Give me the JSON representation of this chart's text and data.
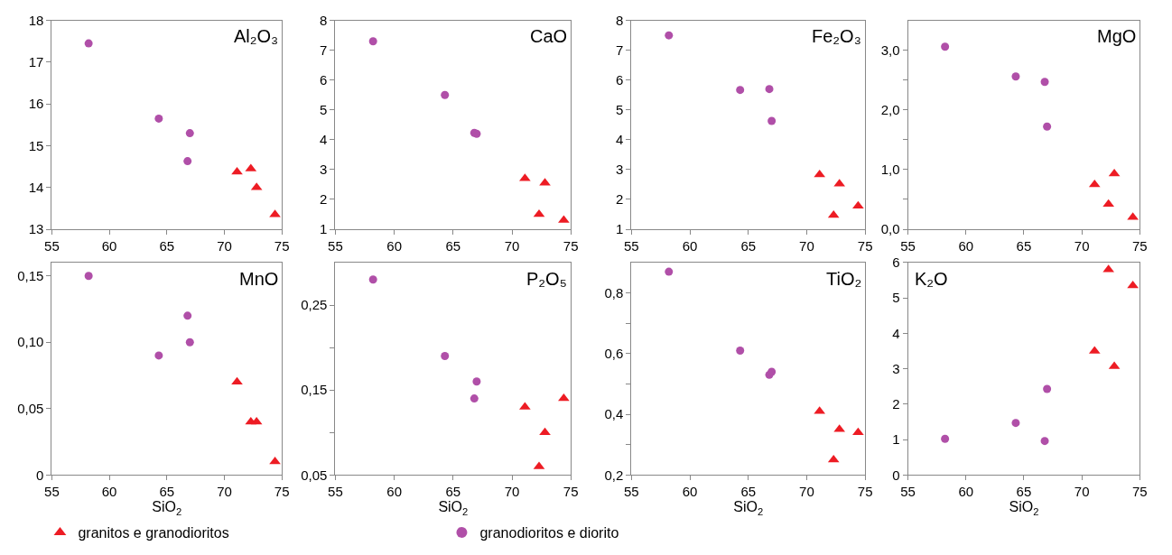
{
  "chart_data": [
    {
      "type": "scatter",
      "annotations": [
        "Al₂O₃"
      ],
      "xlim": [
        55,
        75
      ],
      "xticks": [
        55,
        60,
        65,
        70,
        75
      ],
      "ylim": [
        13,
        18
      ],
      "yticks": [
        13,
        14,
        15,
        16,
        17,
        18
      ],
      "legend": "bottom",
      "series": [
        {
          "name": "granitos e granodioritos",
          "color": "#ed1c24",
          "marker": "triangle",
          "x": [
            71.1,
            72.3,
            72.8,
            74.4
          ],
          "values": [
            14.37,
            14.45,
            14.0,
            13.35
          ]
        },
        {
          "name": "granodioritos e diorito",
          "color": "#b04fa8",
          "marker": "circle",
          "x": [
            58.2,
            64.3,
            67.0,
            66.8
          ],
          "values": [
            17.45,
            15.65,
            15.3,
            14.63
          ]
        }
      ]
    },
    {
      "type": "scatter",
      "annotations": [
        "CaO"
      ],
      "xlim": [
        55,
        75
      ],
      "xticks": [
        55,
        60,
        65,
        70,
        75
      ],
      "ylim": [
        1,
        8
      ],
      "yticks": [
        1,
        2,
        3,
        4,
        5,
        6,
        7,
        8
      ],
      "legend": "bottom",
      "series": [
        {
          "name": "granitos e granodioritos",
          "color": "#ed1c24",
          "marker": "triangle",
          "x": [
            71.1,
            72.8,
            72.3,
            74.4
          ],
          "values": [
            2.7,
            2.55,
            1.5,
            1.3
          ]
        },
        {
          "name": "granodioritos e diorito",
          "color": "#b04fa8",
          "marker": "circle",
          "x": [
            58.2,
            64.3,
            66.8,
            67.0
          ],
          "values": [
            7.3,
            5.5,
            4.23,
            4.2
          ]
        }
      ]
    },
    {
      "type": "scatter",
      "annotations": [
        "Fe₂O₃"
      ],
      "xlim": [
        55,
        75
      ],
      "xticks": [
        55,
        60,
        65,
        70,
        75
      ],
      "ylim": [
        1,
        8
      ],
      "yticks": [
        1,
        2,
        3,
        4,
        5,
        6,
        7,
        8
      ],
      "legend": "bottom",
      "series": [
        {
          "name": "granitos e granodioritos",
          "color": "#ed1c24",
          "marker": "triangle",
          "x": [
            71.1,
            72.8,
            72.3,
            74.4
          ],
          "values": [
            2.83,
            2.52,
            1.47,
            1.78
          ]
        },
        {
          "name": "granodioritos e diorito",
          "color": "#b04fa8",
          "marker": "circle",
          "x": [
            58.2,
            64.3,
            66.8,
            67.0
          ],
          "values": [
            7.5,
            5.67,
            5.7,
            4.63
          ]
        }
      ]
    },
    {
      "type": "scatter",
      "annotations": [
        "MgO"
      ],
      "xlim": [
        55,
        75
      ],
      "xticks": [
        55,
        60,
        65,
        70,
        75
      ],
      "ylim": [
        0,
        3.5
      ],
      "yticks": [
        {
          "value": 0,
          "label": "0,0"
        },
        {
          "value": 0.5,
          "label": null
        },
        {
          "value": 1,
          "label": "1,0"
        },
        {
          "value": 1.5,
          "label": null
        },
        {
          "value": 2,
          "label": "2,0"
        },
        {
          "value": 2.5,
          "label": null
        },
        {
          "value": 3,
          "label": "3,0"
        }
      ],
      "legend": "bottom",
      "series": [
        {
          "name": "granitos e granodioritos",
          "color": "#ed1c24",
          "marker": "triangle",
          "x": [
            71.1,
            72.8,
            72.3,
            74.4
          ],
          "values": [
            0.75,
            0.93,
            0.42,
            0.2
          ]
        },
        {
          "name": "granodioritos e diorito",
          "color": "#b04fa8",
          "marker": "circle",
          "x": [
            58.2,
            64.3,
            66.8,
            67.0
          ],
          "values": [
            3.06,
            2.56,
            2.47,
            1.72
          ]
        }
      ]
    },
    {
      "type": "scatter",
      "annotations": [
        "MnO"
      ],
      "xlabel": "SiO$_{2}$",
      "xlim": [
        55,
        75
      ],
      "xticks": [
        55,
        60,
        65,
        70,
        75
      ],
      "ylim": [
        0,
        0.16
      ],
      "yticks": [
        {
          "value": 0,
          "label": "0"
        },
        {
          "value": 0.05,
          "label": "0,05"
        },
        {
          "value": 0.1,
          "label": "0,10"
        },
        {
          "value": 0.15,
          "label": "0,15"
        }
      ],
      "legend": "bottom",
      "series": [
        {
          "name": "granitos e granodioritos",
          "color": "#ed1c24",
          "marker": "triangle",
          "x": [
            71.1,
            72.3,
            72.8,
            74.4
          ],
          "values": [
            0.07,
            0.04,
            0.04,
            0.01
          ]
        },
        {
          "name": "granodioritos e diorito",
          "color": "#b04fa8",
          "marker": "circle",
          "x": [
            58.2,
            64.3,
            66.8,
            67.0
          ],
          "values": [
            0.15,
            0.09,
            0.12,
            0.1
          ]
        }
      ]
    },
    {
      "type": "scatter",
      "annotations": [
        "P₂O₅"
      ],
      "xlabel": "SiO$_{2}$",
      "xlim": [
        55,
        75
      ],
      "xticks": [
        55,
        60,
        65,
        70,
        75
      ],
      "ylim": [
        0.05,
        0.3
      ],
      "yticks": [
        {
          "value": 0.05,
          "label": "0,05"
        },
        {
          "value": 0.1,
          "label": null
        },
        {
          "value": 0.15,
          "label": "0,15"
        },
        {
          "value": 0.2,
          "label": null
        },
        {
          "value": 0.25,
          "label": "0,25"
        }
      ],
      "legend": "bottom",
      "series": [
        {
          "name": "granitos e granodioritos",
          "color": "#ed1c24",
          "marker": "triangle",
          "x": [
            71.1,
            72.8,
            72.3,
            74.4
          ],
          "values": [
            0.13,
            0.1,
            0.06,
            0.14
          ]
        },
        {
          "name": "granodioritos e diorito",
          "color": "#b04fa8",
          "marker": "circle",
          "x": [
            58.2,
            64.3,
            67.0,
            66.8
          ],
          "values": [
            0.28,
            0.19,
            0.16,
            0.14
          ]
        }
      ]
    },
    {
      "type": "scatter",
      "annotations": [
        "TiO₂"
      ],
      "xlabel": "SiO$_{2}$",
      "xlim": [
        55,
        75
      ],
      "xticks": [
        55,
        60,
        65,
        70,
        75
      ],
      "ylim": [
        0.2,
        0.9
      ],
      "yticks": [
        {
          "value": 0.2,
          "label": "0,2"
        },
        {
          "value": 0.3,
          "label": null
        },
        {
          "value": 0.4,
          "label": "0,4"
        },
        {
          "value": 0.5,
          "label": null
        },
        {
          "value": 0.6,
          "label": "0,6"
        },
        {
          "value": 0.7,
          "label": null
        },
        {
          "value": 0.8,
          "label": "0,8"
        }
      ],
      "legend": "bottom",
      "series": [
        {
          "name": "granitos e granodioritos",
          "color": "#ed1c24",
          "marker": "triangle",
          "x": [
            71.1,
            72.8,
            72.3,
            74.4
          ],
          "values": [
            0.41,
            0.35,
            0.25,
            0.34
          ]
        },
        {
          "name": "granodioritos e diorito",
          "color": "#b04fa8",
          "marker": "circle",
          "x": [
            58.2,
            64.3,
            66.8,
            67.0
          ],
          "values": [
            0.87,
            0.61,
            0.53,
            0.54
          ]
        }
      ]
    },
    {
      "type": "scatter",
      "annotations": [
        "K₂O"
      ],
      "xlabel": "SiO$_{2}$",
      "xlim": [
        55,
        75
      ],
      "xticks": [
        55,
        60,
        65,
        70,
        75
      ],
      "ylim": [
        0,
        6
      ],
      "yticks": [
        0,
        1,
        2,
        3,
        4,
        5,
        6
      ],
      "legend": "bottom",
      "series": [
        {
          "name": "granitos e granodioritos",
          "color": "#ed1c24",
          "marker": "triangle",
          "x": [
            71.1,
            72.3,
            72.8,
            74.4
          ],
          "values": [
            3.5,
            5.8,
            3.07,
            5.35
          ]
        },
        {
          "name": "granodioritos e diorito",
          "color": "#b04fa8",
          "marker": "circle",
          "x": [
            58.2,
            64.3,
            67.0,
            66.8
          ],
          "values": [
            1.02,
            1.47,
            2.43,
            0.96
          ]
        }
      ]
    }
  ]
}
